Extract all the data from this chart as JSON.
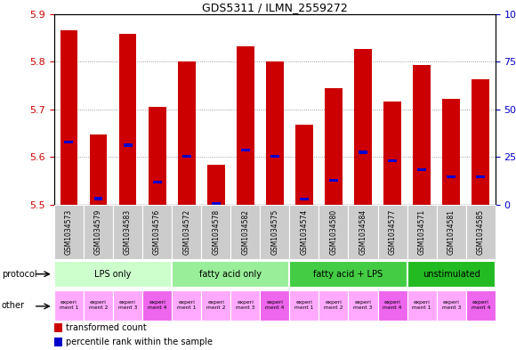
{
  "title": "GDS5311 / ILMN_2559272",
  "samples": [
    "GSM1034573",
    "GSM1034579",
    "GSM1034583",
    "GSM1034576",
    "GSM1034572",
    "GSM1034578",
    "GSM1034582",
    "GSM1034575",
    "GSM1034574",
    "GSM1034580",
    "GSM1034584",
    "GSM1034577",
    "GSM1034571",
    "GSM1034581",
    "GSM1034585"
  ],
  "red_values": [
    5.866,
    5.647,
    5.858,
    5.706,
    5.8,
    5.584,
    5.833,
    5.8,
    5.668,
    5.745,
    5.827,
    5.716,
    5.793,
    5.722,
    5.763
  ],
  "blue_values": [
    5.632,
    5.513,
    5.625,
    5.547,
    5.601,
    5.502,
    5.614,
    5.602,
    5.512,
    5.551,
    5.61,
    5.592,
    5.573,
    5.558,
    5.558
  ],
  "ymin": 5.5,
  "ymax": 5.9,
  "y2min": 0,
  "y2max": 100,
  "yticks": [
    5.5,
    5.6,
    5.7,
    5.8,
    5.9
  ],
  "y2ticks": [
    0,
    25,
    50,
    75,
    100
  ],
  "bar_color": "#cc0000",
  "blue_color": "#0000cc",
  "protocol_groups": [
    {
      "label": "LPS only",
      "start": 0,
      "end": 4,
      "color": "#ccffcc"
    },
    {
      "label": "fatty acid only",
      "start": 4,
      "end": 8,
      "color": "#99ee99"
    },
    {
      "label": "fatty acid + LPS",
      "start": 8,
      "end": 12,
      "color": "#44cc44"
    },
    {
      "label": "unstimulated",
      "start": 12,
      "end": 15,
      "color": "#22bb22"
    }
  ],
  "other_colors": [
    "#ffaaff",
    "#ffaaff",
    "#ffaaff",
    "#ee66ee",
    "#ffaaff",
    "#ffaaff",
    "#ffaaff",
    "#ee66ee",
    "#ffaaff",
    "#ffaaff",
    "#ffaaff",
    "#ee66ee",
    "#ffaaff",
    "#ffaaff",
    "#ee66ee"
  ],
  "experiment_labels": [
    "experi\nment 1",
    "experi\nment 2",
    "experi\nment 3",
    "experi\nment 4",
    "experi\nment 1",
    "experi\nment 2",
    "experi\nment 3",
    "experi\nment 4",
    "experi\nment 1",
    "experi\nment 2",
    "experi\nment 3",
    "experi\nment 4",
    "experi\nment 1",
    "experi\nment 3",
    "experi\nment 4"
  ],
  "sample_bg_color": "#cccccc",
  "bar_width": 0.6,
  "blue_bar_width": 0.3,
  "blue_bar_height": 0.006
}
